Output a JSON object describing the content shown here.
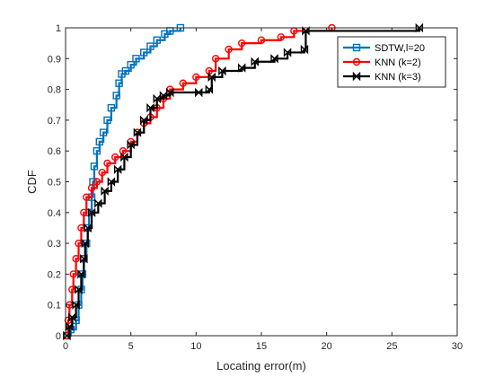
{
  "chart_data": {
    "type": "line",
    "title": "",
    "xlabel": "Locating error(m)",
    "ylabel": "CDF",
    "xlim": [
      0,
      30
    ],
    "ylim": [
      0,
      1
    ],
    "xticks": [
      "0",
      "5",
      "10",
      "15",
      "20",
      "25",
      "30"
    ],
    "yticks": [
      "0",
      "0.1",
      "0.2",
      "0.3",
      "0.4",
      "0.5",
      "0.6",
      "0.7",
      "0.8",
      "0.9",
      "1"
    ],
    "grid": false,
    "legend_position": "top-right",
    "series": [
      {
        "name": "SDTW,l=20",
        "color": "#0072BD",
        "marker": "square",
        "points": [
          [
            0.1,
            0.0
          ],
          [
            0.4,
            0.02
          ],
          [
            0.8,
            0.05
          ],
          [
            1.0,
            0.1
          ],
          [
            1.2,
            0.15
          ],
          [
            1.3,
            0.2
          ],
          [
            1.4,
            0.25
          ],
          [
            1.6,
            0.3
          ],
          [
            1.7,
            0.35
          ],
          [
            1.8,
            0.4
          ],
          [
            2.0,
            0.45
          ],
          [
            2.1,
            0.5
          ],
          [
            2.2,
            0.55
          ],
          [
            2.4,
            0.6
          ],
          [
            2.6,
            0.63
          ],
          [
            2.9,
            0.66
          ],
          [
            3.2,
            0.7
          ],
          [
            3.5,
            0.74
          ],
          [
            3.9,
            0.78
          ],
          [
            4.1,
            0.82
          ],
          [
            4.3,
            0.85
          ],
          [
            4.6,
            0.86
          ],
          [
            5.0,
            0.88
          ],
          [
            5.4,
            0.9
          ],
          [
            6.0,
            0.92
          ],
          [
            6.5,
            0.94
          ],
          [
            7.0,
            0.96
          ],
          [
            7.6,
            0.98
          ],
          [
            8.0,
            0.99
          ],
          [
            8.8,
            1.0
          ]
        ]
      },
      {
        "name": "KNN (k=2)",
        "color": "#FF0000",
        "marker": "circle",
        "points": [
          [
            0.1,
            0.0
          ],
          [
            0.2,
            0.05
          ],
          [
            0.3,
            0.1
          ],
          [
            0.5,
            0.15
          ],
          [
            0.6,
            0.2
          ],
          [
            0.8,
            0.25
          ],
          [
            1.0,
            0.3
          ],
          [
            1.2,
            0.35
          ],
          [
            1.4,
            0.4
          ],
          [
            1.6,
            0.45
          ],
          [
            2.0,
            0.48
          ],
          [
            2.4,
            0.5
          ],
          [
            2.8,
            0.53
          ],
          [
            3.2,
            0.56
          ],
          [
            3.8,
            0.58
          ],
          [
            4.4,
            0.6
          ],
          [
            5.0,
            0.63
          ],
          [
            5.5,
            0.66
          ],
          [
            6.0,
            0.69
          ],
          [
            6.5,
            0.71
          ],
          [
            7.0,
            0.74
          ],
          [
            7.5,
            0.77
          ],
          [
            8.0,
            0.8
          ],
          [
            9.0,
            0.82
          ],
          [
            10.0,
            0.84
          ],
          [
            11.0,
            0.86
          ],
          [
            11.5,
            0.9
          ],
          [
            12.5,
            0.93
          ],
          [
            13.5,
            0.95
          ],
          [
            15.0,
            0.96
          ],
          [
            16.5,
            0.97
          ],
          [
            17.5,
            0.99
          ],
          [
            20.4,
            1.0
          ]
        ]
      },
      {
        "name": "KNN (k=3)",
        "color": "#000000",
        "marker": "bowtie",
        "points": [
          [
            0.1,
            0.0
          ],
          [
            0.3,
            0.03
          ],
          [
            0.5,
            0.06
          ],
          [
            0.8,
            0.1
          ],
          [
            1.0,
            0.15
          ],
          [
            1.2,
            0.2
          ],
          [
            1.4,
            0.25
          ],
          [
            1.5,
            0.3
          ],
          [
            1.7,
            0.35
          ],
          [
            2.0,
            0.4
          ],
          [
            2.5,
            0.43
          ],
          [
            3.0,
            0.47
          ],
          [
            3.5,
            0.5
          ],
          [
            4.0,
            0.54
          ],
          [
            4.5,
            0.58
          ],
          [
            5.0,
            0.62
          ],
          [
            5.5,
            0.66
          ],
          [
            6.0,
            0.7
          ],
          [
            6.5,
            0.74
          ],
          [
            7.0,
            0.77
          ],
          [
            7.5,
            0.78
          ],
          [
            8.0,
            0.79
          ],
          [
            10.2,
            0.79
          ],
          [
            11.0,
            0.8
          ],
          [
            11.2,
            0.84
          ],
          [
            12.0,
            0.86
          ],
          [
            13.5,
            0.87
          ],
          [
            14.5,
            0.89
          ],
          [
            16.0,
            0.9
          ],
          [
            17.0,
            0.92
          ],
          [
            18.3,
            0.93
          ],
          [
            18.4,
            0.99
          ],
          [
            27.1,
            1.0
          ]
        ]
      }
    ]
  }
}
